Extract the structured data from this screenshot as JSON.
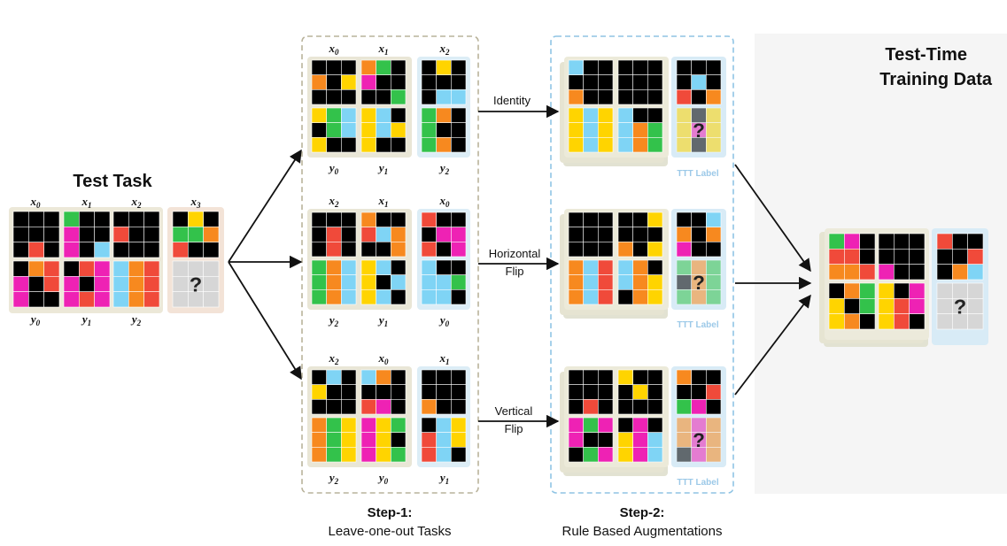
{
  "colors": {
    "black": "#000000",
    "yellow": "#ffd400",
    "magenta": "#ee22b4",
    "cyan": "#7fd4f5",
    "red": "#f04a3a",
    "orange": "#f7891f",
    "green": "#33c24b",
    "gray": "#d6d6d6"
  },
  "test_task": {
    "title": "Test Task",
    "query_mark": "?"
  },
  "step1": {
    "title": "Step-1:",
    "subtitle": "Leave-one-out Tasks"
  },
  "step2": {
    "title": "Step-2:",
    "subtitle": "Rule Based Augmentations"
  },
  "ttd": {
    "title_line1": "Test-Time",
    "title_line2": "Training Data"
  },
  "ttt_label": "TTT Label",
  "query_mark": "?",
  "transforms": [
    {
      "line1": "Identity",
      "line2": ""
    },
    {
      "line1": "Horizontal",
      "line2": "Flip"
    },
    {
      "line1": "Vertical",
      "line2": "Flip"
    }
  ],
  "test_pair_labels": [
    {
      "x": "x",
      "xs": "0",
      "y": "y",
      "ys": "0"
    },
    {
      "x": "x",
      "xs": "1",
      "y": "y",
      "ys": "1"
    },
    {
      "x": "x",
      "xs": "2",
      "y": "y",
      "ys": "2"
    }
  ],
  "test_query_label": {
    "x": "x",
    "xs": "3"
  },
  "rows": [
    {
      "labels": [
        {
          "x": "x",
          "xs": "0",
          "y": "y",
          "ys": "0"
        },
        {
          "x": "x",
          "xs": "1",
          "y": "y",
          "ys": "1"
        },
        {
          "x": "x",
          "xs": "2",
          "y": "y",
          "ys": "2"
        }
      ]
    },
    {
      "labels": [
        {
          "x": "x",
          "xs": "2",
          "y": "y",
          "ys": "2"
        },
        {
          "x": "x",
          "xs": "1",
          "y": "y",
          "ys": "1"
        },
        {
          "x": "x",
          "xs": "0",
          "y": "y",
          "ys": "0"
        }
      ]
    },
    {
      "labels": [
        {
          "x": "x",
          "xs": "2",
          "y": "y",
          "ys": "2"
        },
        {
          "x": "x",
          "xs": "0",
          "y": "y",
          "ys": "0"
        },
        {
          "x": "x",
          "xs": "1",
          "y": "y",
          "ys": "1"
        }
      ]
    }
  ]
}
